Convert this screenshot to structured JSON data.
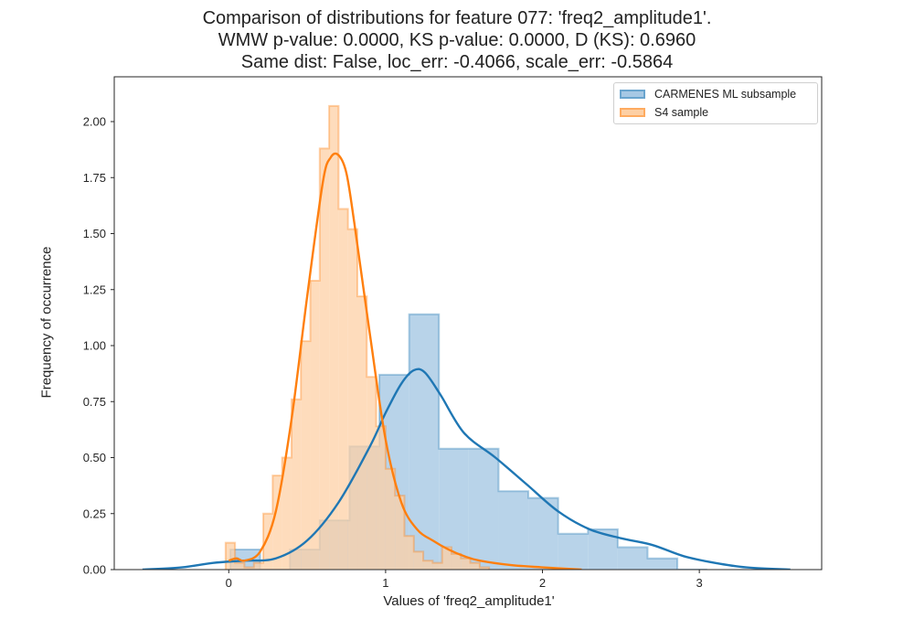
{
  "chart_data": {
    "type": "histogram",
    "title_lines": [
      "Comparison of distributions for feature 077: 'freq2_amplitude1'.",
      "WMW p-value: 0.0000, KS p-value: 0.0000, D (KS): 0.6960",
      "Same dist: False, loc_err: -0.4066, scale_err: -0.5864"
    ],
    "xlabel": "Values of 'freq2_amplitude1'",
    "ylabel": "Frequency of occurrence",
    "xlim": [
      -0.73,
      3.78
    ],
    "ylim": [
      0,
      2.2
    ],
    "xticks": [
      "0",
      "1",
      "2",
      "3"
    ],
    "yticks": [
      "0.00",
      "0.25",
      "0.50",
      "0.75",
      "1.00",
      "1.25",
      "1.50",
      "1.75",
      "2.00"
    ],
    "grid": false,
    "legend_position": "top-right",
    "series": [
      {
        "name": "CARMENES ML subsample",
        "color": "#1f77b4",
        "hist_fill": "#a6c8e4",
        "bin_edges": [
          0.01,
          0.2,
          0.39,
          0.58,
          0.77,
          0.96,
          1.15,
          1.34,
          1.53,
          1.72,
          1.91,
          2.1,
          2.29,
          2.48,
          2.67,
          2.86,
          3.05
        ],
        "counts": [
          0.09,
          0.0,
          0.09,
          0.22,
          0.55,
          0.87,
          1.14,
          0.54,
          0.54,
          0.35,
          0.32,
          0.16,
          0.18,
          0.1,
          0.05,
          0.0
        ],
        "kde_x": [
          -0.55,
          -0.3,
          -0.1,
          0.1,
          0.3,
          0.5,
          0.7,
          0.9,
          1.0,
          1.1,
          1.18,
          1.25,
          1.35,
          1.5,
          1.7,
          1.9,
          2.1,
          2.3,
          2.5,
          2.7,
          2.9,
          3.1,
          3.3,
          3.58
        ],
        "kde_y": [
          0.0,
          0.01,
          0.03,
          0.04,
          0.05,
          0.13,
          0.3,
          0.55,
          0.7,
          0.83,
          0.89,
          0.88,
          0.78,
          0.61,
          0.5,
          0.38,
          0.26,
          0.18,
          0.14,
          0.11,
          0.06,
          0.03,
          0.01,
          0.0
        ]
      },
      {
        "name": "S4 sample",
        "color": "#ff7f0e",
        "hist_fill": "#fdd0a5",
        "bin_edges": [
          -0.02,
          0.04,
          0.1,
          0.16,
          0.22,
          0.28,
          0.34,
          0.4,
          0.46,
          0.52,
          0.58,
          0.64,
          0.7,
          0.76,
          0.82,
          0.88,
          0.94,
          1.0,
          1.06,
          1.12,
          1.18,
          1.24,
          1.3,
          1.36,
          1.42,
          1.48,
          1.54,
          1.6,
          1.66
        ],
        "counts": [
          0.12,
          0.03,
          0.01,
          0.03,
          0.25,
          0.42,
          0.5,
          0.76,
          1.02,
          1.29,
          1.88,
          2.07,
          1.61,
          1.52,
          1.22,
          0.86,
          0.64,
          0.45,
          0.33,
          0.15,
          0.08,
          0.04,
          0.03,
          0.1,
          0.07,
          0.05,
          0.03,
          0.01
        ],
        "kde_x": [
          0.0,
          0.05,
          0.1,
          0.2,
          0.3,
          0.4,
          0.5,
          0.6,
          0.65,
          0.7,
          0.75,
          0.8,
          0.9,
          1.0,
          1.1,
          1.2,
          1.3,
          1.4,
          1.5,
          1.6,
          1.8,
          2.0,
          2.25
        ],
        "kde_y": [
          0.04,
          0.05,
          0.04,
          0.08,
          0.26,
          0.67,
          1.22,
          1.73,
          1.84,
          1.85,
          1.77,
          1.55,
          1.05,
          0.58,
          0.3,
          0.18,
          0.13,
          0.09,
          0.06,
          0.04,
          0.02,
          0.01,
          0.0
        ]
      }
    ]
  }
}
